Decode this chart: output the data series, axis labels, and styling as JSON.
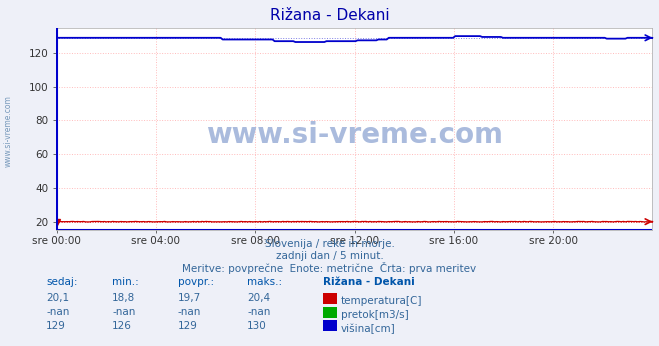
{
  "title": "Rižana - Dekani",
  "bg_color": "#eef0f8",
  "plot_bg_color": "#ffffff",
  "x_labels": [
    "sre 00:00",
    "sre 04:00",
    "sre 08:00",
    "sre 12:00",
    "sre 16:00",
    "sre 20:00"
  ],
  "x_ticks_norm": [
    0.0,
    0.1667,
    0.3333,
    0.5,
    0.6667,
    0.8333
  ],
  "ylim": [
    15,
    135
  ],
  "yticks": [
    20,
    40,
    60,
    80,
    100,
    120
  ],
  "grid_color_h": "#ffbbbb",
  "grid_color_v": "#ffbbbb",
  "temp_color": "#cc0000",
  "visina_color": "#0000cc",
  "pretok_color": "#00aa00",
  "n_points": 288,
  "subtitle1": "Slovenija / reke in morje.",
  "subtitle2": "zadnji dan / 5 minut.",
  "subtitle3": "Meritve: povprečne  Enote: metrične  Črta: prva meritev",
  "table_header": [
    "sedaj:",
    "min.:",
    "povpr.:",
    "maks.:",
    "Rižana - Dekani"
  ],
  "row1": [
    "20,1",
    "18,8",
    "19,7",
    "20,4",
    "temperatura[C]"
  ],
  "row2": [
    "-nan",
    "-nan",
    "-nan",
    "-nan",
    "pretok[m3/s]"
  ],
  "row3": [
    "129",
    "126",
    "129",
    "130",
    "višina[cm]"
  ],
  "watermark": "www.si-vreme.com",
  "watermark_color": "#aabbdd",
  "sidebar_text": "www.si-vreme.com",
  "sidebar_color": "#7799bb",
  "title_color": "#0000aa",
  "text_color": "#336699",
  "header_color": "#0055aa"
}
